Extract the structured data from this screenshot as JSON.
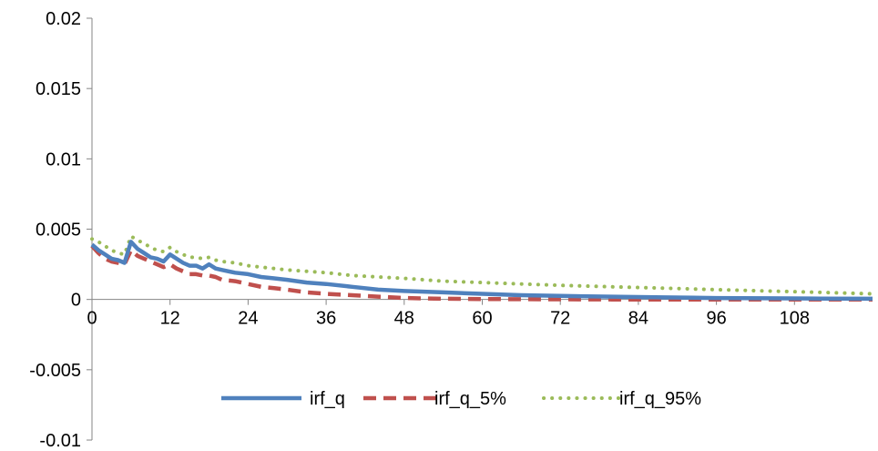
{
  "chart_data": {
    "type": "line",
    "title": "",
    "xlabel": "",
    "ylabel": "",
    "xlim": [
      0,
      120
    ],
    "ylim": [
      -0.01,
      0.02
    ],
    "x_ticks": [
      0,
      12,
      24,
      36,
      48,
      60,
      72,
      84,
      96,
      108
    ],
    "x_tick_labels": [
      "0",
      "12",
      "24",
      "36",
      "48",
      "60",
      "72",
      "84",
      "96",
      "108"
    ],
    "y_ticks": [
      0.02,
      0.015,
      0.01,
      0.005,
      0,
      -0.005,
      -0.01
    ],
    "y_tick_labels": [
      "0.02",
      "0.015",
      "0.01",
      "0.005",
      "0",
      "-0.005",
      "-0.01"
    ],
    "grid": false,
    "legend_position": "bottom-center",
    "x": [
      0,
      1,
      2,
      3,
      4,
      5,
      6,
      7,
      8,
      9,
      10,
      11,
      12,
      13,
      14,
      15,
      16,
      17,
      18,
      19,
      20,
      22,
      24,
      26,
      28,
      30,
      33,
      36,
      40,
      44,
      48,
      54,
      60,
      66,
      72,
      80,
      88,
      96,
      104,
      112,
      120
    ],
    "series": [
      {
        "name": "irf_q",
        "color": "#4F81BD",
        "style": "solid",
        "values": [
          0.0039,
          0.0035,
          0.0032,
          0.0029,
          0.0028,
          0.0026,
          0.0041,
          0.0036,
          0.0033,
          0.003,
          0.0029,
          0.0027,
          0.0032,
          0.0029,
          0.0026,
          0.0024,
          0.0024,
          0.0022,
          0.0025,
          0.0022,
          0.0021,
          0.0019,
          0.0018,
          0.0016,
          0.0015,
          0.0014,
          0.0012,
          0.0011,
          0.0009,
          0.0007,
          0.0006,
          0.0005,
          0.0004,
          0.0003,
          0.00025,
          0.0002,
          0.00015,
          0.0001,
          8e-05,
          6e-05,
          5e-05
        ]
      },
      {
        "name": "irf_q_5%",
        "color": "#C0504D",
        "style": "dashed",
        "values": [
          0.0038,
          0.0033,
          0.0029,
          0.0027,
          0.0026,
          0.0025,
          0.0035,
          0.0031,
          0.0029,
          0.0027,
          0.0025,
          0.0023,
          0.0025,
          0.0022,
          0.002,
          0.0018,
          0.0018,
          0.0017,
          0.0017,
          0.0016,
          0.0014,
          0.0013,
          0.0011,
          0.0009,
          0.0008,
          0.0007,
          0.0005,
          0.0004,
          0.0003,
          0.0002,
          0.0001,
          5e-05,
          3e-05,
          2e-05,
          1e-05,
          0,
          0,
          0,
          0,
          0,
          0
        ]
      },
      {
        "name": "irf_q_95%",
        "color": "#9BBB59",
        "style": "dotted",
        "values": [
          0.0043,
          0.0041,
          0.0038,
          0.0035,
          0.0033,
          0.0032,
          0.0045,
          0.0042,
          0.004,
          0.0037,
          0.0035,
          0.0034,
          0.0037,
          0.0034,
          0.0032,
          0.003,
          0.003,
          0.0029,
          0.003,
          0.0028,
          0.0027,
          0.0026,
          0.0024,
          0.0023,
          0.0022,
          0.0021,
          0.002,
          0.0019,
          0.0017,
          0.0016,
          0.0015,
          0.0013,
          0.0012,
          0.0011,
          0.001,
          0.0009,
          0.0008,
          0.0007,
          0.0006,
          0.0005,
          0.0004
        ]
      }
    ]
  }
}
